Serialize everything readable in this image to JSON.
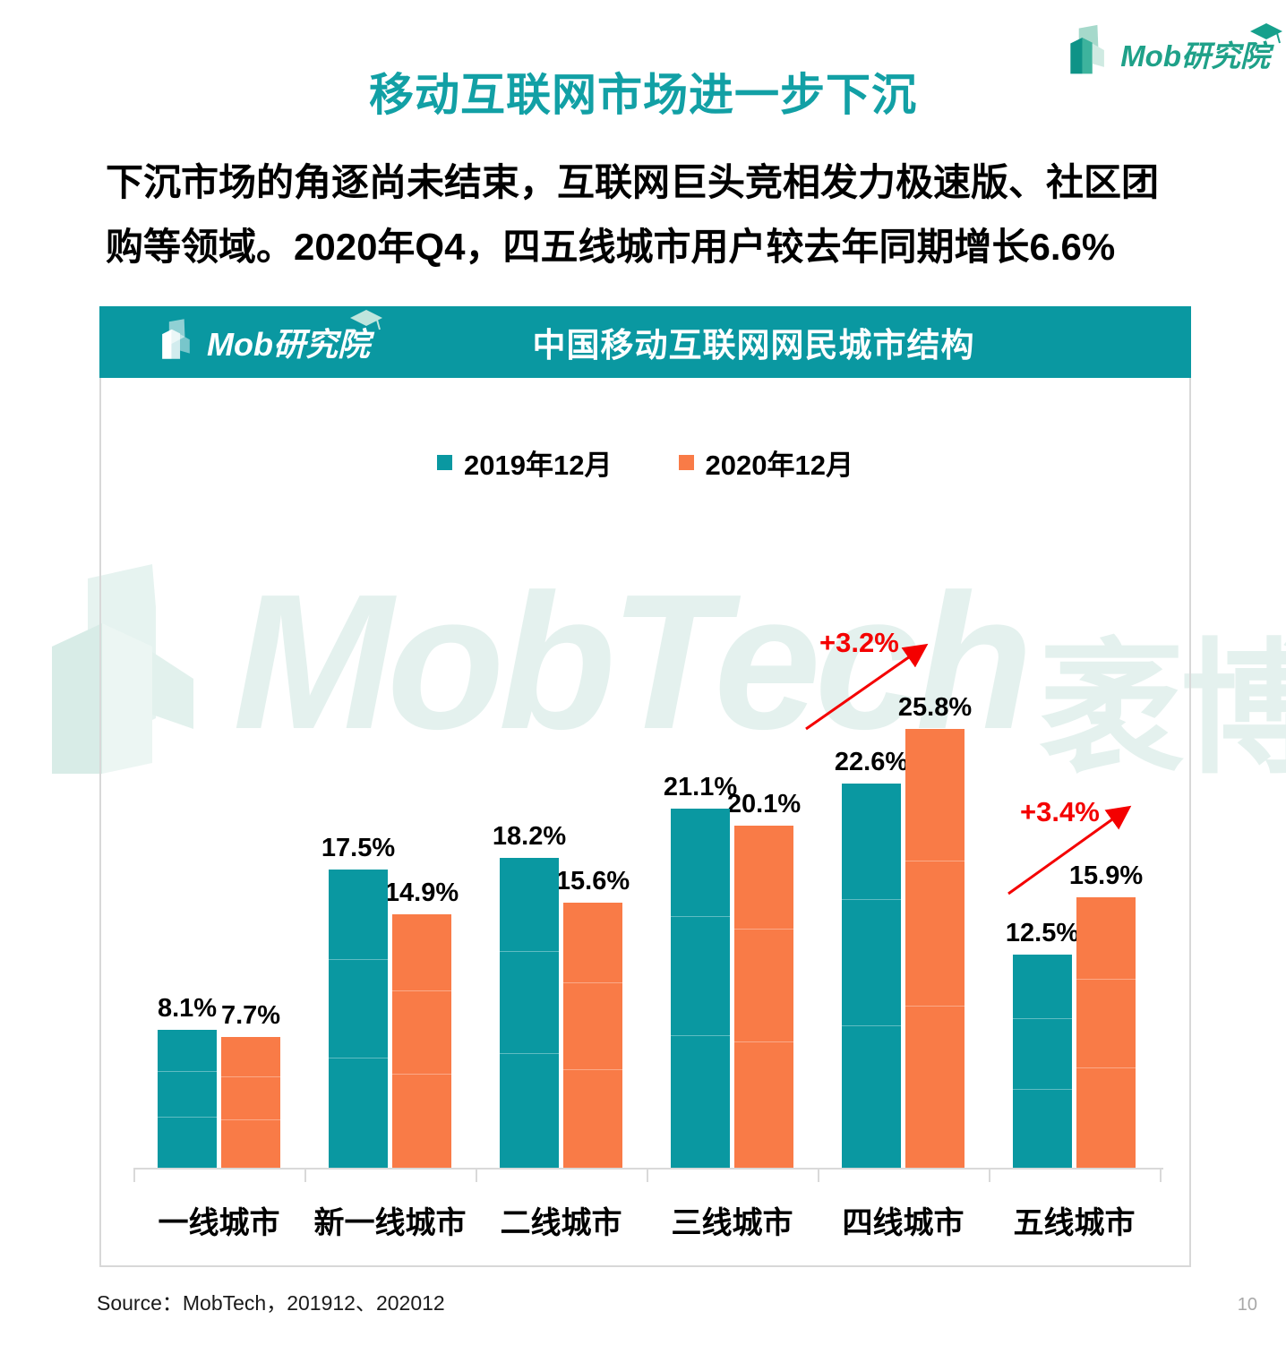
{
  "page": {
    "title": "移动互联网市场进一步下沉",
    "intro": "下沉市场的角逐尚未结束，互联网巨头竞相发力极速版、社区团购等领域。2020年Q4，四五线城市用户较去年同期增长6.6%",
    "brand": "Mob研究院",
    "source": "Source：MobTech，201912、202012",
    "page_number": "10",
    "watermark": {
      "latin": "MobTech",
      "cjk": "袤博"
    }
  },
  "colors": {
    "accent_teal": "#0a98a1",
    "title_teal": "#12a0a5",
    "brand_green": "#1fa189",
    "orange": "#f97b47",
    "annotation_red": "#f40000",
    "border_gray": "#d8d8d8",
    "watermark": "#e4f1ee"
  },
  "chart_data": {
    "type": "bar",
    "title": "中国移动互联网网民城市结构",
    "categories": [
      "一线城市",
      "新一线城市",
      "二线城市",
      "三线城市",
      "四线城市",
      "五线城市"
    ],
    "series": [
      {
        "name": "2019年12月",
        "color": "#0a98a1",
        "values": [
          8.1,
          17.5,
          18.2,
          21.1,
          22.6,
          12.5
        ]
      },
      {
        "name": "2020年12月",
        "color": "#f97b47",
        "values": [
          7.7,
          14.9,
          15.6,
          20.1,
          25.8,
          15.9
        ]
      }
    ],
    "value_suffix": "%",
    "annotations": [
      {
        "label": "+3.2%",
        "category": "四线城市"
      },
      {
        "label": "+3.4%",
        "category": "五线城市"
      }
    ],
    "ylim": [
      0,
      28
    ],
    "grid": false,
    "legend_position": "top"
  }
}
